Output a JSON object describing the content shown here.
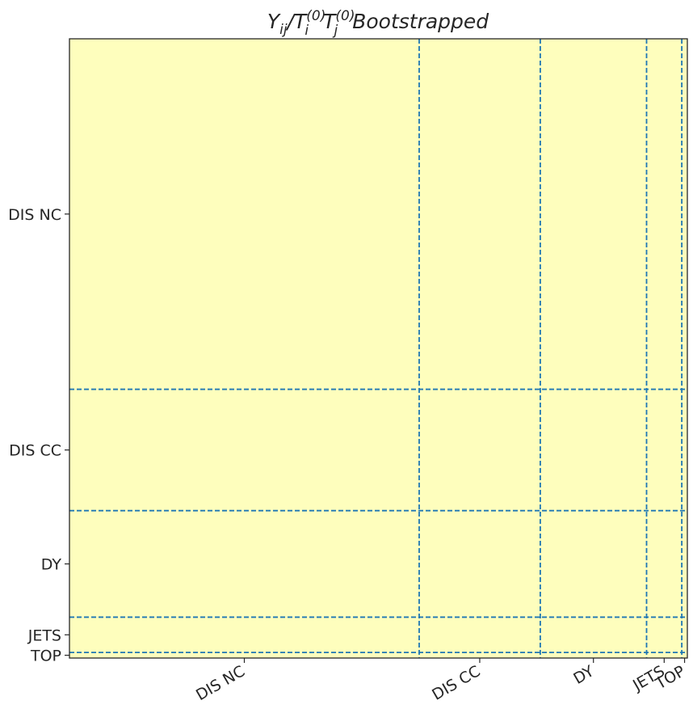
{
  "chart_data": {
    "type": "heatmap",
    "title": {
      "symbol": "Y",
      "symbol_sub": "ij",
      "slash": "/",
      "factor_symbol": "T",
      "factor1_sub": "i",
      "factor2_sub": "j",
      "factor_sup": "(0)",
      "suffix": "Bootstrapped"
    },
    "categories": [
      "DIS NC",
      "DIS CC",
      "DY",
      "JETS",
      "TOP"
    ],
    "block_boundaries": [
      0,
      0.566,
      0.762,
      0.934,
      0.991,
      1.0
    ],
    "cell_color": "#fefebd",
    "boundary_line_color": "#1f77b4",
    "frame_color": "#262626",
    "grid": false
  }
}
